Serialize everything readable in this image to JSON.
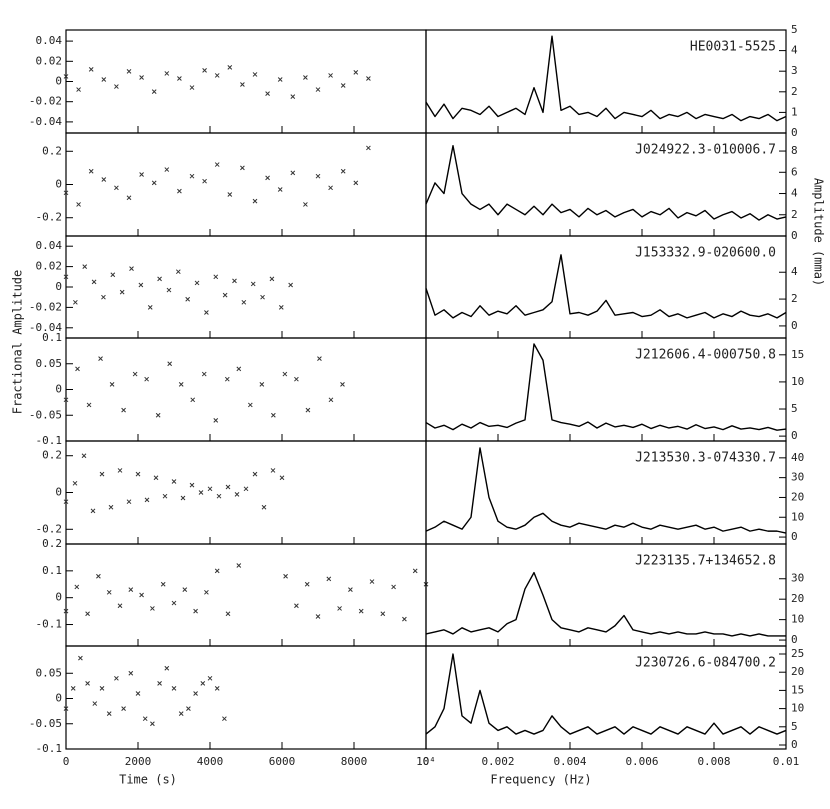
{
  "chart_data": [
    {
      "type": "scatter",
      "xlim": [
        0,
        10000
      ],
      "ylim": [
        -0.051,
        0.051
      ],
      "yticks": [
        -0.04,
        -0.02,
        0,
        0.02,
        0.04
      ],
      "x": [
        0,
        350,
        700,
        1050,
        1400,
        1750,
        2100,
        2450,
        2800,
        3150,
        3500,
        3850,
        4200,
        4550,
        4900,
        5250,
        5600,
        5950,
        6300,
        6650,
        7000,
        7350,
        7700,
        8050,
        8400
      ],
      "values": [
        0.005,
        -0.008,
        0.012,
        0.002,
        -0.005,
        0.01,
        0.004,
        -0.01,
        0.008,
        0.003,
        -0.006,
        0.011,
        0.006,
        0.014,
        -0.003,
        0.007,
        -0.012,
        0.002,
        -0.015,
        0.004,
        -0.008,
        0.006,
        -0.004,
        0.009,
        0.003
      ]
    },
    {
      "type": "line",
      "annotation": "HE0031-5525",
      "xlim": [
        0,
        0.01
      ],
      "ylim": [
        0,
        5
      ],
      "yticks": [
        0,
        1,
        2,
        3,
        4,
        5
      ],
      "x": [
        0,
        0.00025,
        0.0005,
        0.00075,
        0.001,
        0.00125,
        0.0015,
        0.00175,
        0.002,
        0.00225,
        0.0025,
        0.00275,
        0.003,
        0.00325,
        0.0035,
        0.00375,
        0.004,
        0.00425,
        0.0045,
        0.00475,
        0.005,
        0.00525,
        0.0055,
        0.00575,
        0.006,
        0.00625,
        0.0065,
        0.00675,
        0.007,
        0.00725,
        0.0075,
        0.00775,
        0.008,
        0.00825,
        0.0085,
        0.00875,
        0.009,
        0.00925,
        0.0095,
        0.00975,
        0.01
      ],
      "values": [
        1.5,
        0.8,
        1.4,
        0.7,
        1.2,
        1.1,
        0.9,
        1.3,
        0.8,
        1.0,
        1.2,
        0.9,
        2.2,
        1.0,
        4.7,
        1.1,
        1.3,
        0.9,
        1.0,
        0.8,
        1.2,
        0.7,
        1.0,
        0.9,
        0.8,
        1.1,
        0.7,
        0.9,
        0.8,
        1.0,
        0.7,
        0.9,
        0.8,
        0.7,
        0.9,
        0.6,
        0.8,
        0.7,
        0.9,
        0.6,
        0.8
      ]
    },
    {
      "type": "scatter",
      "xlim": [
        0,
        10000
      ],
      "ylim": [
        -0.31,
        0.31
      ],
      "yticks": [
        -0.2,
        0,
        0.2
      ],
      "x": [
        0,
        350,
        700,
        1050,
        1400,
        1750,
        2100,
        2450,
        2800,
        3150,
        3500,
        3850,
        4200,
        4550,
        4900,
        5250,
        5600,
        5950,
        6300,
        6650,
        7000,
        7350,
        7700,
        8050,
        8400
      ],
      "values": [
        -0.05,
        -0.12,
        0.08,
        0.03,
        -0.02,
        -0.08,
        0.06,
        0.01,
        0.09,
        -0.04,
        0.05,
        0.02,
        0.12,
        -0.06,
        0.1,
        -0.1,
        0.04,
        -0.03,
        0.07,
        -0.12,
        0.05,
        -0.02,
        0.08,
        0.01,
        0.22
      ]
    },
    {
      "type": "line",
      "annotation": "J024922.3-010006.7",
      "xlim": [
        0,
        0.01
      ],
      "ylim": [
        0,
        9.7
      ],
      "yticks": [
        0,
        2,
        4,
        6,
        8
      ],
      "x": [
        0,
        0.00025,
        0.0005,
        0.00075,
        0.001,
        0.00125,
        0.0015,
        0.00175,
        0.002,
        0.00225,
        0.0025,
        0.00275,
        0.003,
        0.00325,
        0.0035,
        0.00375,
        0.004,
        0.00425,
        0.0045,
        0.00475,
        0.005,
        0.00525,
        0.0055,
        0.00575,
        0.006,
        0.00625,
        0.0065,
        0.00675,
        0.007,
        0.00725,
        0.0075,
        0.00775,
        0.008,
        0.00825,
        0.0085,
        0.00875,
        0.009,
        0.00925,
        0.0095,
        0.00975,
        0.01
      ],
      "values": [
        3,
        5,
        4,
        8.5,
        4,
        3,
        2.5,
        3,
        2,
        3,
        2.5,
        2,
        2.8,
        2,
        3,
        2.2,
        2.5,
        1.8,
        2.6,
        2,
        2.4,
        1.8,
        2.2,
        2.5,
        1.8,
        2.3,
        2,
        2.6,
        1.7,
        2.2,
        1.9,
        2.4,
        1.6,
        2,
        2.3,
        1.7,
        2.1,
        1.5,
        2,
        1.6,
        1.8
      ]
    },
    {
      "type": "scatter",
      "ylabel": "Fractional Amplitude",
      "xlim": [
        0,
        10000
      ],
      "ylim": [
        -0.05,
        0.05
      ],
      "yticks": [
        -0.04,
        -0.02,
        0,
        0.02,
        0.04
      ],
      "x": [
        0,
        260,
        520,
        780,
        1040,
        1300,
        1560,
        1820,
        2080,
        2340,
        2600,
        2860,
        3120,
        3380,
        3640,
        3900,
        4160,
        4420,
        4680,
        4940,
        5200,
        5460,
        5720,
        5980,
        6240
      ],
      "values": [
        0.01,
        -0.015,
        0.02,
        0.005,
        -0.01,
        0.012,
        -0.005,
        0.018,
        0.002,
        -0.02,
        0.008,
        -0.003,
        0.015,
        -0.012,
        0.004,
        -0.025,
        0.01,
        -0.008,
        0.006,
        -0.015,
        0.003,
        -0.01,
        0.008,
        -0.02,
        0.002
      ]
    },
    {
      "type": "line",
      "annotation": "J153332.9-020600.0",
      "ylabel": "Amplitude (mma)",
      "xlim": [
        0,
        0.01
      ],
      "ylim": [
        -0.9,
        6.7
      ],
      "yticks": [
        0,
        2,
        4
      ],
      "x": [
        0,
        0.00025,
        0.0005,
        0.00075,
        0.001,
        0.00125,
        0.0015,
        0.00175,
        0.002,
        0.00225,
        0.0025,
        0.00275,
        0.003,
        0.00325,
        0.0035,
        0.00375,
        0.004,
        0.00425,
        0.0045,
        0.00475,
        0.005,
        0.00525,
        0.0055,
        0.00575,
        0.006,
        0.00625,
        0.0065,
        0.00675,
        0.007,
        0.00725,
        0.0075,
        0.00775,
        0.008,
        0.00825,
        0.0085,
        0.00875,
        0.009,
        0.00925,
        0.0095,
        0.00975,
        0.01
      ],
      "values": [
        2.8,
        0.8,
        1.2,
        0.6,
        1.0,
        0.7,
        1.5,
        0.8,
        1.1,
        0.9,
        1.5,
        0.8,
        1.0,
        1.2,
        1.8,
        5.3,
        0.9,
        1.0,
        0.8,
        1.1,
        1.9,
        0.8,
        0.9,
        1.0,
        0.7,
        0.8,
        1.2,
        0.7,
        0.9,
        0.6,
        0.8,
        1.0,
        0.6,
        0.9,
        0.7,
        1.1,
        0.8,
        0.7,
        0.9,
        0.6,
        1.0
      ]
    },
    {
      "type": "scatter",
      "xlim": [
        0,
        10000
      ],
      "ylim": [
        -0.1,
        0.1
      ],
      "yticks": [
        -0.1,
        -0.05,
        0,
        0.05,
        0.1
      ],
      "x": [
        0,
        320,
        640,
        960,
        1280,
        1600,
        1920,
        2240,
        2560,
        2880,
        3200,
        3520,
        3840,
        4160,
        4480,
        4800,
        5120,
        5440,
        5760,
        6080,
        6400,
        6720,
        7040,
        7360,
        7680
      ],
      "values": [
        -0.02,
        0.04,
        -0.03,
        0.06,
        0.01,
        -0.04,
        0.03,
        0.02,
        -0.05,
        0.05,
        0.01,
        -0.02,
        0.03,
        -0.06,
        0.02,
        0.04,
        -0.03,
        0.01,
        -0.05,
        0.03,
        0.02,
        -0.04,
        0.06,
        -0.02,
        0.01
      ]
    },
    {
      "type": "line",
      "annotation": "J212606.4-000750.8",
      "xlim": [
        0,
        0.01
      ],
      "ylim": [
        -0.9,
        18.1
      ],
      "yticks": [
        0,
        5,
        10,
        15
      ],
      "x": [
        0,
        0.00025,
        0.0005,
        0.00075,
        0.001,
        0.00125,
        0.0015,
        0.00175,
        0.002,
        0.00225,
        0.0025,
        0.00275,
        0.003,
        0.00325,
        0.0035,
        0.00375,
        0.004,
        0.00425,
        0.0045,
        0.00475,
        0.005,
        0.00525,
        0.0055,
        0.00575,
        0.006,
        0.00625,
        0.0065,
        0.00675,
        0.007,
        0.00725,
        0.0075,
        0.00775,
        0.008,
        0.00825,
        0.0085,
        0.00875,
        0.009,
        0.00925,
        0.0095,
        0.00975,
        0.01
      ],
      "values": [
        2.5,
        1.5,
        2,
        1.2,
        2.2,
        1.5,
        2.5,
        1.8,
        2.0,
        1.6,
        2.4,
        3,
        17,
        14,
        3,
        2.5,
        2.2,
        1.8,
        2.6,
        1.5,
        2.4,
        1.7,
        2.0,
        1.6,
        2.2,
        1.4,
        2.0,
        1.5,
        1.8,
        1.3,
        2.1,
        1.4,
        1.7,
        1.2,
        1.9,
        1.3,
        1.5,
        1.2,
        1.6,
        1.1,
        1.3
      ]
    },
    {
      "type": "scatter",
      "xlim": [
        0,
        10000
      ],
      "ylim": [
        -0.28,
        0.28
      ],
      "yticks": [
        -0.2,
        0,
        0.2
      ],
      "x": [
        0,
        250,
        500,
        750,
        1000,
        1250,
        1500,
        1750,
        2000,
        2250,
        2500,
        2750,
        3000,
        3250,
        3500,
        3750,
        4000,
        4250,
        4500,
        4750,
        5000,
        5250,
        5500,
        5750,
        6000
      ],
      "values": [
        -0.05,
        0.05,
        0.2,
        -0.1,
        0.1,
        -0.08,
        0.12,
        -0.05,
        0.1,
        -0.04,
        0.08,
        -0.02,
        0.06,
        -0.03,
        0.04,
        0,
        0.02,
        -0.02,
        0.03,
        -0.01,
        0.02,
        0.1,
        -0.08,
        0.12,
        0.08
      ]
    },
    {
      "type": "line",
      "annotation": "J213530.3-074330.7",
      "xlim": [
        0,
        0.01
      ],
      "ylim": [
        -3.5,
        48.5
      ],
      "yticks": [
        0,
        10,
        20,
        30,
        40
      ],
      "x": [
        0,
        0.00025,
        0.0005,
        0.00075,
        0.001,
        0.00125,
        0.0015,
        0.00175,
        0.002,
        0.00225,
        0.0025,
        0.00275,
        0.003,
        0.00325,
        0.0035,
        0.00375,
        0.004,
        0.00425,
        0.0045,
        0.00475,
        0.005,
        0.00525,
        0.0055,
        0.00575,
        0.006,
        0.00625,
        0.0065,
        0.00675,
        0.007,
        0.00725,
        0.0075,
        0.00775,
        0.008,
        0.00825,
        0.0085,
        0.00875,
        0.009,
        0.00925,
        0.0095,
        0.00975,
        0.01
      ],
      "values": [
        3,
        5,
        8,
        6,
        4,
        10,
        45,
        20,
        8,
        5,
        4,
        6,
        10,
        12,
        8,
        6,
        5,
        7,
        6,
        5,
        4,
        6,
        5,
        7,
        5,
        4,
        6,
        5,
        4,
        5,
        6,
        4,
        5,
        3,
        4,
        5,
        3,
        4,
        3,
        3,
        2
      ]
    },
    {
      "type": "scatter",
      "xlim": [
        0,
        10000
      ],
      "ylim": [
        -0.18,
        0.2
      ],
      "yticks": [
        -0.1,
        0,
        0.1,
        0.2
      ],
      "x": [
        0,
        300,
        600,
        900,
        1200,
        1500,
        1800,
        2100,
        2400,
        2700,
        3000,
        3300,
        3600,
        3900,
        4200,
        4500,
        4800,
        6100,
        6400,
        6700,
        7000,
        7300,
        7600,
        7900,
        8200,
        8500,
        8800,
        9100,
        9400,
        9700,
        10000
      ],
      "values": [
        -0.05,
        0.04,
        -0.06,
        0.08,
        0.02,
        -0.03,
        0.03,
        0.01,
        -0.04,
        0.05,
        -0.02,
        0.03,
        -0.05,
        0.02,
        0.1,
        -0.06,
        0.12,
        0.08,
        -0.03,
        0.05,
        -0.07,
        0.07,
        -0.04,
        0.03,
        -0.05,
        0.06,
        -0.06,
        0.04,
        -0.08,
        0.1,
        0.05
      ]
    },
    {
      "type": "line",
      "annotation": "J223135.7+134652.8",
      "xlim": [
        0,
        0.01
      ],
      "ylim": [
        -2.9,
        47
      ],
      "yticks": [
        0,
        10,
        20,
        30
      ],
      "x": [
        0,
        0.00025,
        0.0005,
        0.00075,
        0.001,
        0.00125,
        0.0015,
        0.00175,
        0.002,
        0.00225,
        0.0025,
        0.00275,
        0.003,
        0.00325,
        0.0035,
        0.00375,
        0.004,
        0.00425,
        0.0045,
        0.00475,
        0.005,
        0.00525,
        0.0055,
        0.00575,
        0.006,
        0.00625,
        0.0065,
        0.00675,
        0.007,
        0.00725,
        0.0075,
        0.00775,
        0.008,
        0.00825,
        0.0085,
        0.00875,
        0.009,
        0.00925,
        0.0095,
        0.00975,
        0.01
      ],
      "values": [
        3,
        4,
        5,
        3,
        6,
        4,
        5,
        6,
        4,
        8,
        10,
        25,
        33,
        22,
        10,
        6,
        5,
        4,
        6,
        5,
        4,
        7,
        12,
        5,
        4,
        3,
        4,
        3,
        4,
        3,
        3,
        4,
        3,
        3,
        2,
        3,
        2,
        3,
        2,
        2,
        2
      ]
    },
    {
      "type": "scatter",
      "xlabel": "Time (s)",
      "xlim": [
        0,
        10000
      ],
      "xticks": [
        0,
        2000,
        4000,
        6000,
        8000,
        {
          "value": 10000,
          "label": "10⁴"
        }
      ],
      "ylim": [
        -0.1,
        0.104
      ],
      "yticks": [
        -0.1,
        -0.05,
        0,
        0.05
      ],
      "x": [
        0,
        200,
        400,
        600,
        800,
        1000,
        1200,
        1400,
        1600,
        1800,
        2000,
        2200,
        2400,
        2600,
        2800,
        3000,
        3200,
        3400,
        3600,
        3800,
        4000,
        4200,
        4400
      ],
      "values": [
        -0.02,
        0.02,
        0.08,
        0.03,
        -0.01,
        0.02,
        -0.03,
        0.04,
        -0.02,
        0.05,
        0.01,
        -0.04,
        -0.05,
        0.03,
        0.06,
        0.02,
        -0.03,
        -0.02,
        0.01,
        0.03,
        0.04,
        0.02,
        -0.04
      ]
    },
    {
      "type": "line",
      "annotation": "J230726.6-084700.2",
      "xlabel": "Frequency (Hz)",
      "xlim": [
        0,
        0.01
      ],
      "xticks": [
        0,
        0.002,
        0.004,
        0.006,
        0.008,
        0.01
      ],
      "ylim": [
        -1.1,
        27.2
      ],
      "yticks": [
        0,
        5,
        10,
        15,
        20,
        25
      ],
      "x": [
        0,
        0.00025,
        0.0005,
        0.00075,
        0.001,
        0.00125,
        0.0015,
        0.00175,
        0.002,
        0.00225,
        0.0025,
        0.00275,
        0.003,
        0.00325,
        0.0035,
        0.00375,
        0.004,
        0.00425,
        0.0045,
        0.00475,
        0.005,
        0.00525,
        0.0055,
        0.00575,
        0.006,
        0.00625,
        0.0065,
        0.00675,
        0.007,
        0.00725,
        0.0075,
        0.00775,
        0.008,
        0.00825,
        0.0085,
        0.00875,
        0.009,
        0.00925,
        0.0095,
        0.00975,
        0.01
      ],
      "values": [
        3,
        5,
        10,
        25,
        8,
        6,
        15,
        6,
        4,
        5,
        3,
        4,
        3,
        4,
        8,
        5,
        3,
        4,
        5,
        3,
        4,
        5,
        3,
        5,
        4,
        3,
        5,
        4,
        3,
        5,
        4,
        3,
        6,
        3,
        4,
        5,
        3,
        5,
        4,
        3,
        4
      ]
    }
  ]
}
